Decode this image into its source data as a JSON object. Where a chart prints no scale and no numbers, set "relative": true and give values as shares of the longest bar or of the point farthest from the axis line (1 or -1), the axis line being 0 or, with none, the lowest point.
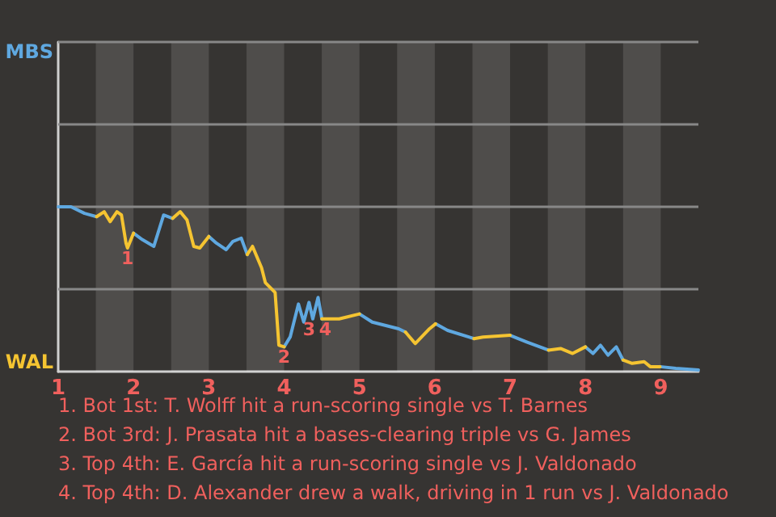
{
  "chart_data": {
    "type": "line",
    "relative": true,
    "x": [
      1.0,
      1.17,
      1.35,
      1.51,
      1.61,
      1.69,
      1.78,
      1.84,
      1.9,
      1.92,
      2.0,
      2.12,
      2.27,
      2.4,
      2.52,
      2.62,
      2.71,
      2.8,
      2.88,
      3.0,
      3.1,
      3.23,
      3.32,
      3.43,
      3.51,
      3.58,
      3.7,
      3.75,
      3.88,
      3.93,
      4.0,
      4.08,
      4.19,
      4.26,
      4.33,
      4.38,
      4.45,
      4.5,
      4.73,
      5.0,
      5.17,
      5.52,
      5.61,
      5.74,
      5.93,
      6.01,
      6.17,
      6.52,
      6.64,
      7.0,
      7.22,
      7.51,
      7.67,
      7.83,
      8.0,
      8.1,
      8.2,
      8.3,
      8.41,
      8.5,
      8.62,
      8.78,
      8.86,
      8.99,
      9.2,
      9.5
    ],
    "series": [
      {
        "name": "MBS",
        "color": "#5fa8e0",
        "values": [
          1.0,
          1.0,
          0.96,
          0.94,
          null,
          null,
          null,
          null,
          null,
          null,
          0.84,
          0.8,
          0.76,
          0.95,
          0.93,
          null,
          null,
          null,
          null,
          0.82,
          0.78,
          0.74,
          0.79,
          0.81,
          0.71,
          null,
          null,
          null,
          null,
          null,
          0.15,
          0.21,
          0.41,
          0.3,
          0.42,
          0.32,
          0.45,
          0.32,
          null,
          0.35,
          0.3,
          0.26,
          0.24,
          null,
          null,
          0.29,
          0.25,
          0.2,
          null,
          0.22,
          0.18,
          0.13,
          null,
          null,
          0.15,
          0.11,
          0.16,
          0.1,
          0.15,
          0.07,
          null,
          null,
          null,
          0.03,
          0.02,
          0.01
        ]
      },
      {
        "name": "WAL",
        "color": "#f5c431",
        "values": [
          null,
          null,
          null,
          0.94,
          0.97,
          0.91,
          0.97,
          0.95,
          0.78,
          0.75,
          0.84,
          null,
          null,
          null,
          0.93,
          0.97,
          0.92,
          0.76,
          0.75,
          0.82,
          null,
          null,
          null,
          null,
          0.71,
          0.76,
          0.63,
          0.54,
          0.48,
          0.16,
          0.15,
          null,
          null,
          null,
          null,
          null,
          null,
          0.32,
          0.32,
          0.35,
          null,
          null,
          0.24,
          0.17,
          0.26,
          0.29,
          null,
          0.2,
          0.21,
          0.22,
          null,
          0.13,
          0.14,
          0.11,
          0.15,
          null,
          null,
          null,
          null,
          0.07,
          0.05,
          0.06,
          0.03,
          0.03,
          null,
          null
        ]
      }
    ],
    "xlim": [
      1,
      9.5
    ],
    "xticks": [
      1,
      2,
      3,
      4,
      5,
      6,
      7,
      8,
      9
    ],
    "tick_labels": "x",
    "ref_lines": [
      {
        "axis": "y",
        "value": 0.5,
        "color": "#888888"
      },
      {
        "axis": "y",
        "value": 1,
        "color": "#888888"
      },
      {
        "axis": "y",
        "value": 1.5,
        "color": "#888888"
      },
      {
        "axis": "y",
        "value": 2,
        "color": "#888888"
      }
    ],
    "marker": "none",
    "line_style": "solid",
    "legend": "left",
    "bands": [
      {
        "axis": "x",
        "from": 1.5,
        "to": 2,
        "color": "#4f4e4c"
      },
      {
        "axis": "x",
        "from": 2.5,
        "to": 3,
        "color": "#4f4e4c"
      },
      {
        "axis": "x",
        "from": 3.5,
        "to": 4,
        "color": "#4f4e4c"
      },
      {
        "axis": "x",
        "from": 4.5,
        "to": 5,
        "color": "#4f4e4c"
      },
      {
        "axis": "x",
        "from": 5.5,
        "to": 6,
        "color": "#4f4e4c"
      },
      {
        "axis": "x",
        "from": 6.5,
        "to": 7,
        "color": "#4f4e4c"
      },
      {
        "axis": "x",
        "from": 7.5,
        "to": 8,
        "color": "#4f4e4c"
      },
      {
        "axis": "x",
        "from": 8.5,
        "to": 9,
        "color": "#4f4e4c"
      }
    ],
    "annotations": [
      {
        "text": "1",
        "x": 1.92,
        "y": 0.75
      },
      {
        "text": "2",
        "x": 4.0,
        "y": 0.15
      },
      {
        "text": "3",
        "x": 4.38,
        "y": 0.32
      },
      {
        "text": "4",
        "x": 4.5,
        "y": 0.32
      },
      "1. Bot 1st: T. Wolff hit a run-scoring single vs T. Barnes",
      "2. Bot 3rd: J. Prasata hit a bases-clearing triple vs G. James",
      "3. Top 4th: E. García hit a run-scoring single vs J. Valdonado",
      "4. Top 4th: D. Alexander drew a walk, driving in 1 run vs J. Valdonado"
    ]
  }
}
